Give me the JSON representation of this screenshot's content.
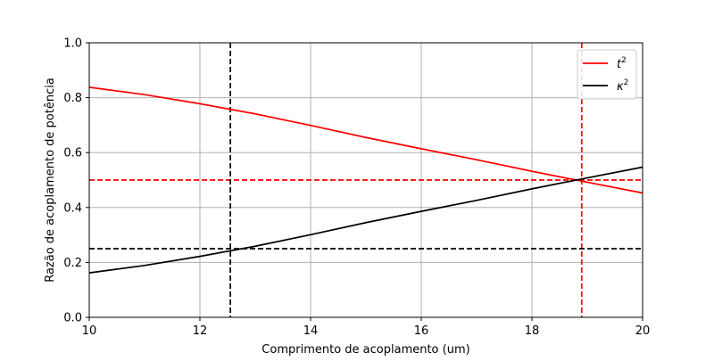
{
  "chart_data": {
    "type": "line",
    "title": "",
    "xlabel": "Comprimento de acoplamento (um)",
    "ylabel": "Razão de acoplamento de potência",
    "xlim": [
      10,
      20
    ],
    "ylim": [
      0.0,
      1.0
    ],
    "xticks": [
      10,
      12,
      14,
      16,
      18,
      20
    ],
    "xtick_labels": [
      "10",
      "12",
      "14",
      "16",
      "18",
      "20"
    ],
    "yticks": [
      0.0,
      0.2,
      0.4,
      0.6,
      0.8,
      1.0
    ],
    "ytick_labels": [
      "0.0",
      "0.2",
      "0.4",
      "0.6",
      "0.8",
      "1.0"
    ],
    "grid": true,
    "legend_position": "top-right",
    "series": [
      {
        "name": "t",
        "superscript": "2",
        "color": "#ff0000",
        "x": [
          10,
          11,
          12,
          13,
          14,
          15,
          16,
          17,
          18,
          19,
          20
        ],
        "y": [
          0.838,
          0.811,
          0.778,
          0.741,
          0.699,
          0.655,
          0.614,
          0.574,
          0.532,
          0.492,
          0.453
        ]
      },
      {
        "name": "κ",
        "superscript": "2",
        "color": "#000000",
        "x": [
          10,
          11,
          12,
          13,
          14,
          15,
          16,
          17,
          18,
          19,
          20
        ],
        "y": [
          0.162,
          0.189,
          0.222,
          0.259,
          0.301,
          0.345,
          0.386,
          0.426,
          0.468,
          0.508,
          0.547
        ]
      }
    ],
    "reference_lines": [
      {
        "orientation": "horizontal",
        "value": 0.5,
        "color": "#ff0000",
        "style": "dashed"
      },
      {
        "orientation": "vertical",
        "value": 18.9,
        "color": "#ff0000",
        "style": "dashed"
      },
      {
        "orientation": "horizontal",
        "value": 0.25,
        "color": "#000000",
        "style": "dashed"
      },
      {
        "orientation": "vertical",
        "value": 12.55,
        "color": "#000000",
        "style": "dashed"
      }
    ]
  }
}
